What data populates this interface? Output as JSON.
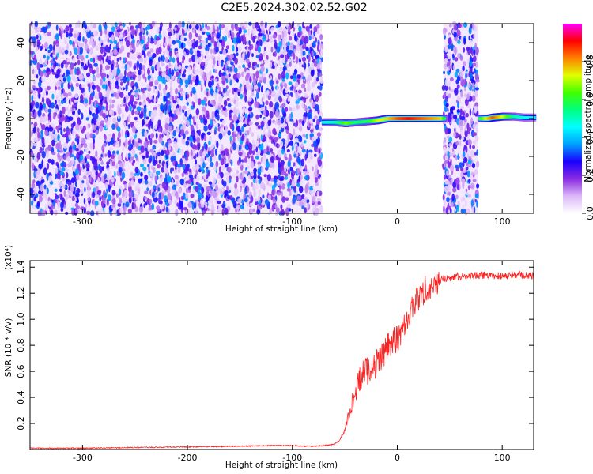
{
  "title": "C2E5.2024.302.02.52.G02",
  "chart_data": [
    {
      "type": "heatmap",
      "xlabel": "Height of straight line (km)",
      "ylabel": "Frequency (Hz)",
      "xlim": [
        -350,
        130
      ],
      "ylim": [
        -50,
        50
      ],
      "xticks": [
        -300,
        -200,
        -100,
        0,
        100
      ],
      "yticks": [
        -40,
        -20,
        0,
        20,
        40
      ],
      "xtick_labels": [
        "-300",
        "-200",
        "-100",
        "0",
        "100"
      ],
      "ytick_labels": [
        "-40",
        "-20",
        "0",
        "20",
        "40"
      ],
      "colorbar": {
        "label": "Normalized spectral amplitude",
        "range": [
          0,
          1
        ],
        "ticks": [
          0,
          0.2,
          0.4,
          0.6,
          0.8
        ],
        "tick_labels": [
          "0.0",
          "0.2",
          "0.4",
          "0.6",
          "0.8"
        ],
        "colormap": [
          "#ffffff",
          "#dcb8f8",
          "#8a2be2",
          "#1a00ff",
          "#00a0ff",
          "#00ffff",
          "#00ff80",
          "#40ff00",
          "#e0ff00",
          "#ff8000",
          "#ff0000",
          "#ff00ff"
        ]
      },
      "noise_regions": [
        {
          "x_start": -350,
          "x_end": -72
        },
        {
          "x_start": 44,
          "x_end": 77
        }
      ],
      "signal_ridge": {
        "x": [
          -72,
          -60,
          -50,
          -40,
          -30,
          -20,
          -10,
          0,
          10,
          20,
          30,
          40,
          44,
          77,
          85,
          90,
          100,
          110,
          120,
          130
        ],
        "freq": [
          -2,
          -2,
          -2.5,
          -2,
          -1.5,
          -1,
          0,
          0,
          0,
          0,
          0,
          0,
          0,
          0,
          0,
          0.5,
          1,
          1,
          0.5,
          0.5
        ],
        "amplitude": [
          0.5,
          0.55,
          0.7,
          0.6,
          0.6,
          0.75,
          0.8,
          0.9,
          0.95,
          0.9,
          0.85,
          0.8,
          0.6,
          0.6,
          0.8,
          0.9,
          0.75,
          0.55,
          0.5,
          0.45
        ]
      }
    },
    {
      "type": "line",
      "xlabel": "Height of straight line (km)",
      "ylabel": "SNR (10 * v/v)",
      "y_multiplier": "(x10⁴)",
      "xlim": [
        -350,
        130
      ],
      "ylim": [
        0,
        1.45
      ],
      "xticks": [
        -300,
        -200,
        -100,
        0,
        100
      ],
      "yticks": [
        0.2,
        0.4,
        0.6,
        0.8,
        1.0,
        1.2,
        1.4
      ],
      "xtick_labels": [
        "-300",
        "-200",
        "-100",
        "0",
        "100"
      ],
      "ytick_labels": [
        "0.2",
        "0.4",
        "0.6",
        "0.8",
        "1.0",
        "1.2",
        "1.4"
      ],
      "color": "#ff2020",
      "series": [
        {
          "x": [
            -350,
            -300,
            -250,
            -200,
            -150,
            -120,
            -110,
            -100,
            -90,
            -80,
            -70,
            -60,
            -55,
            -50,
            -45,
            -40,
            -35,
            -30,
            -25,
            -20,
            -15,
            -10,
            -5,
            0,
            5,
            10,
            15,
            20,
            25,
            30,
            35,
            40,
            50,
            60,
            70,
            80,
            90,
            100,
            110,
            120,
            130
          ],
          "values": [
            0.01,
            0.01,
            0.015,
            0.02,
            0.025,
            0.03,
            0.03,
            0.03,
            0.025,
            0.025,
            0.03,
            0.04,
            0.07,
            0.15,
            0.3,
            0.45,
            0.55,
            0.6,
            0.62,
            0.66,
            0.72,
            0.78,
            0.82,
            0.86,
            0.92,
            1.0,
            1.1,
            1.16,
            1.22,
            1.26,
            1.28,
            1.3,
            1.32,
            1.33,
            1.33,
            1.34,
            1.34,
            1.33,
            1.34,
            1.34,
            1.33
          ]
        }
      ]
    }
  ]
}
